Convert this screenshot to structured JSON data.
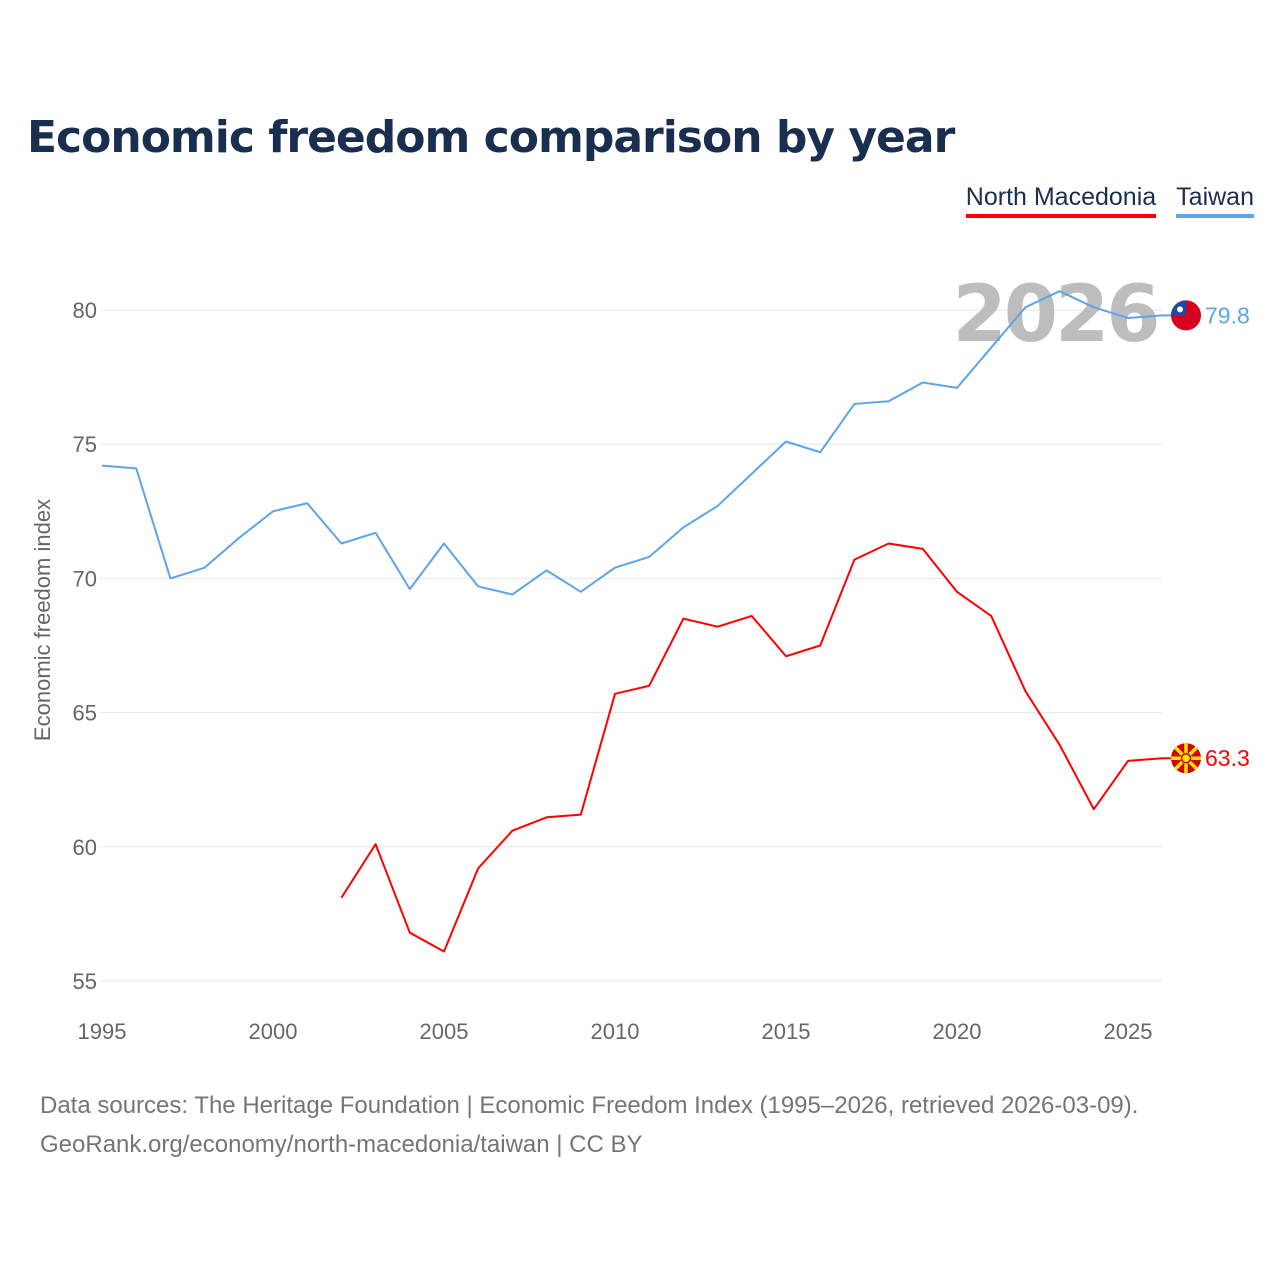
{
  "chart_data": {
    "type": "line",
    "title": "Economic freedom comparison by year",
    "xlabel": "",
    "ylabel": "Economic freedom index",
    "xlim": [
      1995,
      2026
    ],
    "ylim": [
      55,
      82
    ],
    "x_ticks": [
      1995,
      2000,
      2005,
      2010,
      2015,
      2020,
      2025
    ],
    "y_ticks": [
      55,
      60,
      65,
      70,
      75,
      80
    ],
    "grid": true,
    "legend_position": "top-right",
    "year_watermark": "2026",
    "series": [
      {
        "name": "North Macedonia",
        "color": "#ff0000",
        "end_label": "63.3",
        "flag": "north-macedonia",
        "x": [
          2002,
          2003,
          2004,
          2005,
          2006,
          2007,
          2008,
          2009,
          2010,
          2011,
          2012,
          2013,
          2014,
          2015,
          2016,
          2017,
          2018,
          2019,
          2020,
          2021,
          2022,
          2023,
          2024,
          2025,
          2026
        ],
        "values": [
          58.1,
          60.1,
          56.8,
          56.1,
          59.2,
          60.6,
          61.1,
          61.2,
          65.7,
          66.0,
          68.5,
          68.2,
          68.6,
          67.1,
          67.5,
          70.7,
          71.3,
          71.1,
          69.5,
          68.6,
          65.8,
          63.8,
          61.4,
          63.2,
          63.3
        ]
      },
      {
        "name": "Taiwan",
        "color": "#5ea4e8",
        "end_label": "79.8",
        "flag": "taiwan",
        "x": [
          1995,
          1996,
          1997,
          1998,
          1999,
          2000,
          2001,
          2002,
          2003,
          2004,
          2005,
          2006,
          2007,
          2008,
          2009,
          2010,
          2011,
          2012,
          2013,
          2014,
          2015,
          2016,
          2017,
          2018,
          2019,
          2020,
          2021,
          2022,
          2023,
          2024,
          2025,
          2026
        ],
        "values": [
          74.2,
          74.1,
          70.0,
          70.4,
          71.5,
          72.5,
          72.8,
          71.3,
          71.7,
          69.6,
          71.3,
          69.7,
          69.4,
          70.3,
          69.5,
          70.4,
          70.8,
          71.9,
          72.7,
          73.9,
          75.1,
          74.7,
          76.5,
          76.6,
          77.3,
          77.1,
          78.6,
          80.1,
          80.7,
          80.1,
          79.7,
          79.8
        ]
      }
    ]
  },
  "footer": {
    "line1": "Data sources: The Heritage Foundation | Economic Freedom Index (1995–2026, retrieved 2026-03-09).",
    "line2": "GeoRank.org/economy/north-macedonia/taiwan | CC BY"
  }
}
